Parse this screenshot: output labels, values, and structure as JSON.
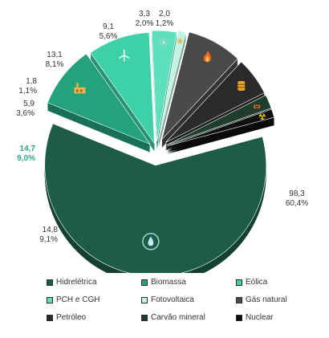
{
  "chart_data": {
    "type": "pie",
    "variant": "exploded-3d",
    "categories": [
      "Hidrelétrica",
      "Biomassa",
      "Eólica",
      "PCH e CGH",
      "Fotovoltaica",
      "Gás natural",
      "Petróleo",
      "Carvão mineral",
      "Nuclear"
    ],
    "values": [
      98.3,
      14.8,
      14.7,
      5.9,
      1.8,
      13.1,
      9.1,
      3.3,
      2.0
    ],
    "value_labels": [
      "98,3",
      "14,8",
      "14,7",
      "5,9",
      "1,8",
      "13,1",
      "9,1",
      "3,3",
      "2,0"
    ],
    "percent_labels": [
      "60,4%",
      "9,1%",
      "9,0%",
      "3,6%",
      "1,1%",
      "8,1%",
      "5,6%",
      "2,0%",
      "1,2%"
    ],
    "colors": [
      "#1d5c49",
      "#23a27c",
      "#3ed0a6",
      "#5fe0bd",
      "#c2f3e3",
      "#4a4a4a",
      "#2a2a2a",
      "#1e3d2e",
      "#101010"
    ],
    "icons": [
      "water-drop-icon",
      "factory-icon",
      "wind-turbine-icon",
      "water-drop-icon",
      "sun-icon",
      "flame-icon",
      "oil-barrel-icon",
      "coal-icon",
      "radiation-icon"
    ],
    "legend_position": "bottom"
  }
}
